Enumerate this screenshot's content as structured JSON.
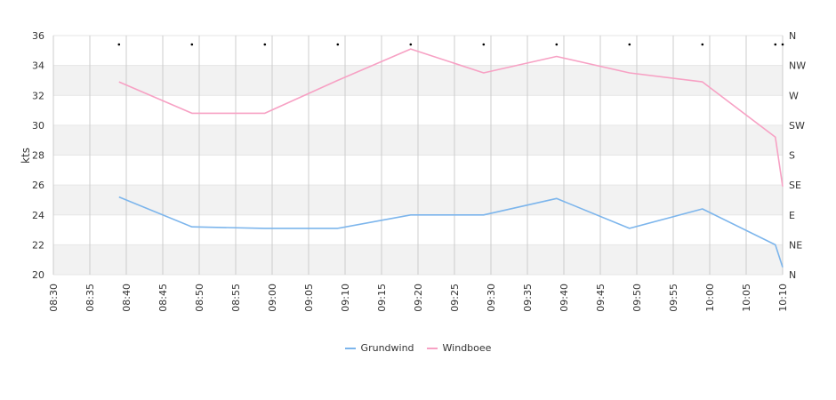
{
  "chart_data": {
    "type": "line",
    "ylabel": "kts",
    "ylim": [
      20,
      36
    ],
    "y_ticks": [
      "20",
      "22",
      "24",
      "26",
      "28",
      "30",
      "32",
      "34",
      "36"
    ],
    "x_ticks": [
      "08:30",
      "08:35",
      "08:40",
      "08:45",
      "08:50",
      "08:55",
      "09:00",
      "09:05",
      "09:10",
      "09:15",
      "09:20",
      "09:25",
      "09:30",
      "09:35",
      "09:40",
      "09:45",
      "09:50",
      "09:55",
      "10:00",
      "10:05",
      "10:10"
    ],
    "x_range": [
      "08:30",
      "10:10"
    ],
    "right_axis_ticks": [
      "N",
      "NE",
      "E",
      "SE",
      "S",
      "SW",
      "W",
      "NW",
      "N"
    ],
    "grid": true,
    "legend_position": "bottom",
    "series": [
      {
        "name": "Grundwind",
        "color": "#7cb5ec",
        "points": [
          [
            "08:39",
            25.2
          ],
          [
            "08:49",
            23.2
          ],
          [
            "08:59",
            23.1
          ],
          [
            "09:09",
            23.1
          ],
          [
            "09:19",
            24.0
          ],
          [
            "09:29",
            24.0
          ],
          [
            "09:39",
            25.1
          ],
          [
            "09:49",
            23.1
          ],
          [
            "09:59",
            24.4
          ],
          [
            "10:09",
            22.0
          ],
          [
            "10:10",
            20.5
          ]
        ]
      },
      {
        "name": "Windboee",
        "color": "#f7a1c4",
        "points": [
          [
            "08:39",
            32.9
          ],
          [
            "08:49",
            30.8
          ],
          [
            "08:59",
            30.8
          ],
          [
            "09:09",
            33.0
          ],
          [
            "09:19",
            35.1
          ],
          [
            "09:29",
            33.5
          ],
          [
            "09:39",
            34.6
          ],
          [
            "09:49",
            33.5
          ],
          [
            "09:59",
            32.9
          ],
          [
            "10:09",
            29.2
          ],
          [
            "10:10",
            25.9
          ]
        ]
      }
    ],
    "direction_markers": [
      "08:39",
      "08:49",
      "08:59",
      "09:09",
      "09:19",
      "09:29",
      "09:39",
      "09:49",
      "09:59",
      "10:09",
      "10:10"
    ]
  }
}
